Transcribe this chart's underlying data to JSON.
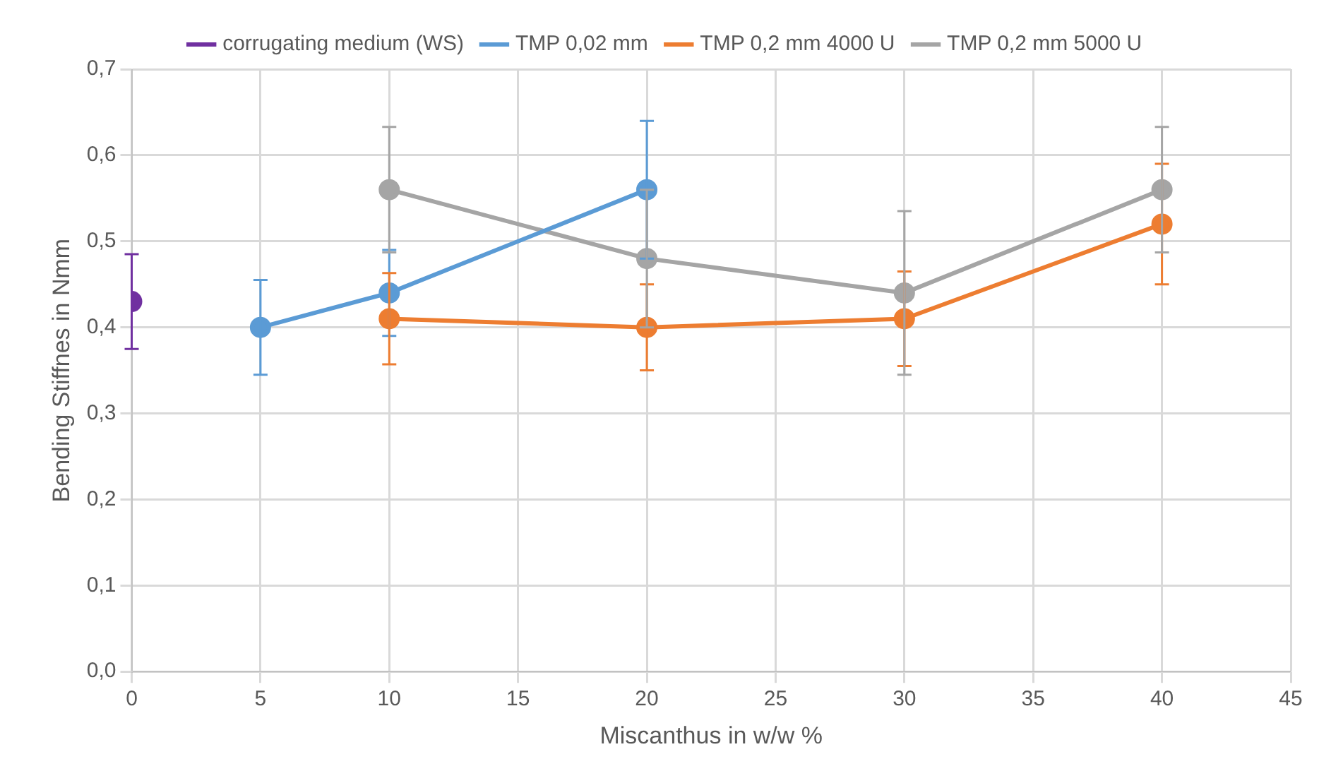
{
  "chart_data": {
    "type": "line",
    "xlabel": "Miscanthus in w/w %",
    "ylabel": "Bending Stiffnes in Nmm",
    "xlim": [
      0,
      45
    ],
    "xticks": [
      0,
      5,
      10,
      15,
      20,
      25,
      30,
      35,
      40,
      45
    ],
    "ylim": [
      0,
      0.7
    ],
    "yticks": [
      {
        "value": 0,
        "label": "0,0"
      },
      {
        "value": 0.1,
        "label": "0,1"
      },
      {
        "value": 0.2,
        "label": "0,2"
      },
      {
        "value": 0.3,
        "label": "0,3"
      },
      {
        "value": 0.4,
        "label": "0,4"
      },
      {
        "value": 0.5,
        "label": "0,5"
      },
      {
        "value": 0.6,
        "label": "0,6"
      },
      {
        "value": 0.7,
        "label": "0,7"
      }
    ],
    "grid": true,
    "legend": "top",
    "marker": "circle",
    "series": [
      {
        "name": "corrugating medium (WS)",
        "color": "#7030a0",
        "x": [
          0
        ],
        "values": [
          0.43
        ],
        "errors": [
          0.055
        ]
      },
      {
        "name": "TMP 0,02 mm",
        "color": "#5b9bd5",
        "x": [
          5,
          10,
          20
        ],
        "values": [
          0.4,
          0.44,
          0.56
        ],
        "errors": [
          0.055,
          0.05,
          0.08
        ]
      },
      {
        "name": "TMP 0,2 mm 4000 U",
        "color": "#ed7d31",
        "x": [
          10,
          20,
          30,
          40
        ],
        "values": [
          0.41,
          0.4,
          0.41,
          0.52
        ],
        "errors": [
          0.053,
          0.05,
          0.055,
          0.07
        ]
      },
      {
        "name": "TMP 0,2 mm 5000 U",
        "color": "#a5a5a5",
        "x": [
          10,
          20,
          30,
          40
        ],
        "values": [
          0.56,
          0.48,
          0.44,
          0.56
        ],
        "errors": [
          0.073,
          0.08,
          0.095,
          0.073
        ]
      }
    ]
  }
}
